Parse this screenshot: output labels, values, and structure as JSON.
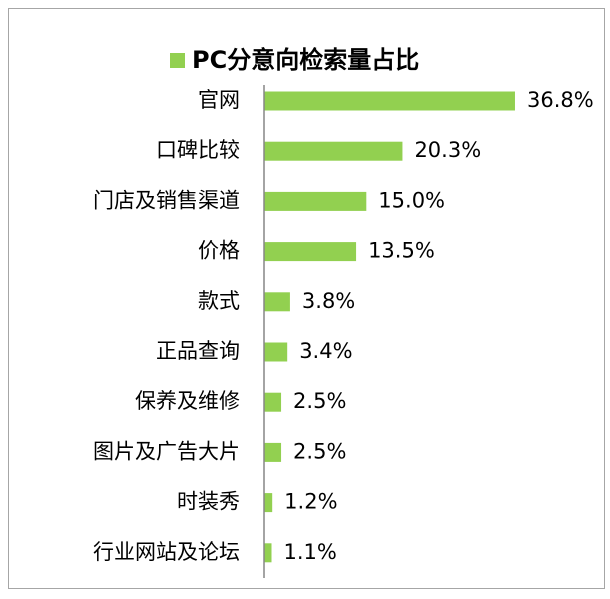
{
  "chart_data": {
    "type": "bar",
    "orientation": "horizontal",
    "categories": [
      "官网",
      "口碑比较",
      "门店及销售渠道",
      "价格",
      "款式",
      "正品查询",
      "保养及维修",
      "图片及广告大片",
      "时装秀",
      "行业网站及论坛"
    ],
    "series": [
      {
        "name": "PC分意向检索量占比",
        "color": "#92d050",
        "values": [
          36.8,
          20.3,
          15.0,
          13.5,
          3.8,
          3.4,
          2.5,
          2.5,
          1.2,
          1.1
        ],
        "value_labels": [
          "36.8%",
          "20.3%",
          "15.0%",
          "13.5%",
          "3.8%",
          "3.4%",
          "2.5%",
          "2.5%",
          "1.2%",
          "1.1%"
        ]
      }
    ],
    "legend": "top"
  }
}
